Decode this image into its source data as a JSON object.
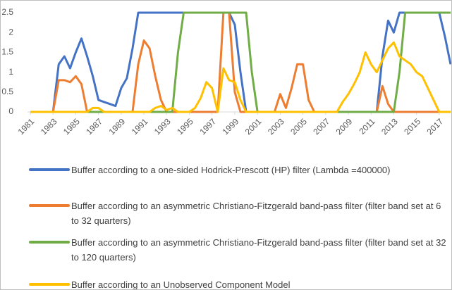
{
  "chart_data": {
    "type": "line",
    "x": [
      1981,
      1981.5,
      1982,
      1982.5,
      1983,
      1983.5,
      1984,
      1984.5,
      1985,
      1985.5,
      1986,
      1986.5,
      1987,
      1987.5,
      1988,
      1988.5,
      1989,
      1989.5,
      1990,
      1990.5,
      1991,
      1991.5,
      1992,
      1992.5,
      1993,
      1993.5,
      1994,
      1994.5,
      1995,
      1995.5,
      1996,
      1996.5,
      1997,
      1997.5,
      1998,
      1998.5,
      1999,
      1999.5,
      2000,
      2000.5,
      2001,
      2001.5,
      2002,
      2002.5,
      2003,
      2003.5,
      2004,
      2004.5,
      2005,
      2005.5,
      2006,
      2006.5,
      2007,
      2007.5,
      2008,
      2008.5,
      2009,
      2009.5,
      2010,
      2010.5,
      2011,
      2011.5,
      2012,
      2012.5,
      2013,
      2013.5,
      2014,
      2014.5,
      2015,
      2015.5,
      2016,
      2016.5,
      2017,
      2017.5,
      2018
    ],
    "series": [
      {
        "name": "Buffer according to a one-sided Hodrick-Prescott (HP) filter (Lambda =400000)",
        "color": "#4472c4",
        "values": [
          0,
          0,
          0,
          0,
          0,
          1.2,
          1.4,
          1.1,
          1.5,
          1.85,
          1.4,
          0.9,
          0.3,
          0.25,
          0.2,
          0.15,
          0.6,
          0.85,
          1.6,
          2.5,
          2.5,
          2.5,
          2.5,
          2.5,
          2.5,
          2.5,
          2.5,
          2.5,
          2.5,
          2.5,
          2.5,
          2.5,
          2.5,
          2.5,
          2.5,
          2.5,
          2.2,
          1.0,
          0,
          0,
          0,
          0,
          0,
          0,
          0,
          0,
          0,
          0,
          0,
          0,
          0,
          0,
          0,
          0,
          0,
          0,
          0,
          0,
          0,
          0,
          0,
          0,
          1.4,
          2.3,
          2.0,
          2.5,
          2.5,
          2.5,
          2.5,
          2.5,
          2.5,
          2.5,
          2.5,
          1.9,
          1.2
        ]
      },
      {
        "name": "Buffer according to an asymmetric Christiano-Fitzgerald band-pass filter (filter band set at 6 to 32 quarters)",
        "color": "#ed7d31",
        "values": [
          0,
          0,
          0,
          0,
          0,
          0.8,
          0.8,
          0.75,
          0.9,
          0.7,
          0,
          0,
          0,
          0,
          0,
          0,
          0,
          0,
          0,
          1.2,
          1.8,
          1.6,
          0.9,
          0.3,
          0,
          0,
          0,
          0,
          0,
          0,
          0,
          0,
          0,
          0,
          2.5,
          2.5,
          0.5,
          0,
          0,
          0,
          0,
          0,
          0,
          0,
          0.45,
          0.1,
          0.6,
          1.2,
          1.2,
          0.3,
          0,
          0,
          0,
          0,
          0,
          0,
          0,
          0,
          0,
          0,
          0,
          0,
          0.65,
          0.2,
          0,
          0,
          0,
          0,
          0,
          0,
          0,
          0,
          0,
          0,
          0
        ]
      },
      {
        "name": "Buffer according to an asymmetric Christiano-Fitzgerald band-pass filter (filter band set at 32 to 120 quarters)",
        "color": "#70ad47",
        "values": [
          0,
          0,
          0,
          0,
          0,
          0,
          0,
          0,
          0,
          0,
          0,
          0,
          0,
          0,
          0,
          0,
          0,
          0,
          0,
          0,
          0,
          0,
          0,
          0,
          0,
          0,
          1.5,
          2.5,
          2.5,
          2.5,
          2.5,
          2.5,
          2.5,
          2.5,
          2.5,
          2.5,
          2.5,
          2.5,
          2.5,
          1.0,
          0,
          0,
          0,
          0,
          0,
          0,
          0,
          0,
          0,
          0,
          0,
          0,
          0,
          0,
          0,
          0,
          0,
          0,
          0,
          0,
          0,
          0,
          0,
          0,
          0,
          1.0,
          2.5,
          2.5,
          2.5,
          2.5,
          2.5,
          2.5,
          2.5,
          2.5,
          2.5
        ]
      },
      {
        "name": "Buffer according to an Unobserved Component Model",
        "color": "#ffc000",
        "values": [
          0,
          0,
          0,
          0,
          0,
          0,
          0,
          0,
          0,
          0,
          0,
          0.1,
          0.1,
          0,
          0,
          0,
          0,
          0,
          0,
          0,
          0,
          0,
          0.1,
          0.15,
          0.05,
          0.1,
          0,
          0,
          0,
          0.1,
          0.35,
          0.75,
          0.6,
          0,
          1.1,
          0.8,
          0.75,
          0.3,
          0,
          0,
          0,
          0,
          0,
          0,
          0,
          0,
          0,
          0,
          0,
          0,
          0,
          0,
          0,
          0,
          0,
          0.25,
          0.45,
          0.7,
          1.0,
          1.5,
          1.2,
          1.0,
          1.3,
          1.6,
          1.75,
          1.4,
          1.3,
          1.2,
          1.0,
          0.9,
          0.6,
          0.3,
          0,
          0,
          0
        ]
      }
    ],
    "xlim": [
      1981,
      2018
    ],
    "xticks": [
      1981,
      1983,
      1985,
      1987,
      1989,
      1991,
      1993,
      1995,
      1997,
      1999,
      2001,
      2003,
      2005,
      2007,
      2009,
      2011,
      2013,
      2015,
      2017
    ],
    "ylim": [
      0,
      2.5
    ],
    "yticks": [
      0,
      0.5,
      1,
      1.5,
      2,
      2.5
    ],
    "grid": false
  }
}
